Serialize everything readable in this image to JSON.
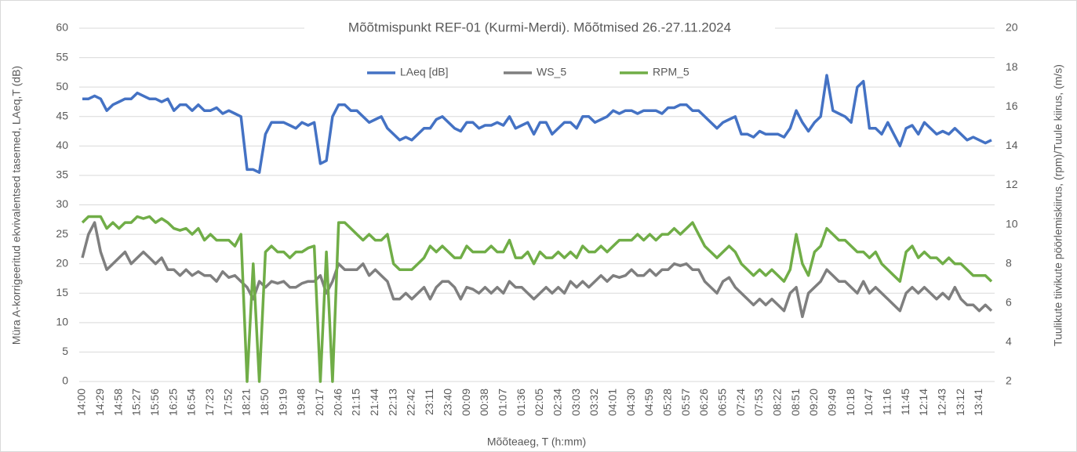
{
  "chart_data": {
    "type": "line",
    "title": "Mõõtmispunkt REF-01 (Kurmi-Merdi). Mõõtmised 26.-27.11.2024",
    "x_label": "Mõõteaeg, T (h:mm)",
    "y_label": "Müra A-korrigeeritud ekvivalentsed tasemed, LAeq,T (dB)",
    "y2_label": "Tuulikute tiivikute pöörlemiskiirus, (rpm)/Tuule kiirus, (m/s)",
    "categories": [
      "14:00",
      null,
      null,
      "14:29",
      null,
      null,
      "14:58",
      null,
      null,
      "15:27",
      null,
      null,
      "15:56",
      null,
      null,
      "16:25",
      null,
      null,
      "16:54",
      null,
      null,
      "17:23",
      null,
      null,
      "17:52",
      null,
      null,
      "18:21",
      null,
      null,
      "18:50",
      null,
      null,
      "19:19",
      null,
      null,
      "19:48",
      null,
      null,
      "20:17",
      null,
      null,
      "20:46",
      null,
      null,
      "21:15",
      null,
      null,
      "21:44",
      null,
      null,
      "22:13",
      null,
      null,
      "22:42",
      null,
      null,
      "23:11",
      null,
      null,
      "23:40",
      null,
      null,
      "00:09",
      null,
      null,
      "00:38",
      null,
      null,
      "01:07",
      null,
      null,
      "01:36",
      null,
      null,
      "02:05",
      null,
      null,
      "02:34",
      null,
      null,
      "03:03",
      null,
      null,
      "03:32",
      null,
      null,
      "04:01",
      null,
      null,
      "04:30",
      null,
      null,
      "04:59",
      null,
      null,
      "05:28",
      null,
      null,
      "05:57",
      null,
      null,
      "06:26",
      null,
      null,
      "06:55",
      null,
      null,
      "07:24",
      null,
      null,
      "07:53",
      null,
      null,
      "08:22",
      null,
      null,
      "08:51",
      null,
      null,
      "09:20",
      null,
      null,
      "09:49",
      null,
      null,
      "10:18",
      null,
      null,
      "10:47",
      null,
      null,
      "11:16",
      null,
      null,
      "11:45",
      null,
      null,
      "12:14",
      null,
      null,
      "12:43",
      null,
      null,
      "13:12",
      null,
      null,
      "13:41",
      null,
      null
    ],
    "series": [
      {
        "name": "LAeq [dB]",
        "color": "#4472c4",
        "values": [
          48,
          48,
          48.5,
          48,
          46,
          47,
          47.5,
          48,
          48,
          49,
          48.5,
          48,
          48,
          47.5,
          48,
          46,
          47,
          47,
          46,
          47,
          46,
          46,
          46.5,
          45.5,
          46,
          45.5,
          45,
          36,
          36,
          35.5,
          42,
          44,
          44,
          44,
          43.5,
          43,
          44,
          43.5,
          44,
          37,
          37.5,
          45,
          47,
          47,
          46,
          46,
          45,
          44,
          44.5,
          45,
          43,
          42,
          41,
          41.5,
          41,
          42,
          43,
          43,
          44.5,
          45,
          44,
          43,
          42.5,
          44,
          44,
          43,
          43.5,
          43.5,
          44,
          43.5,
          45,
          43,
          43.5,
          44,
          42,
          44,
          44,
          42,
          43,
          44,
          44,
          43,
          45,
          45,
          44,
          44.5,
          45,
          46,
          45.5,
          46,
          46,
          45.5,
          46,
          46,
          46,
          45.5,
          46.5,
          46.5,
          47,
          47,
          46,
          46,
          45,
          44,
          43,
          44,
          44.5,
          45,
          42,
          42,
          41.5,
          42.5,
          42,
          42,
          42,
          41.5,
          43,
          46,
          44,
          42.5,
          44,
          45,
          52,
          46,
          45.5,
          45,
          44,
          50,
          51,
          43,
          43,
          42,
          44,
          42,
          40,
          43,
          43.5,
          42,
          44,
          43,
          42,
          42.5,
          42,
          43,
          42,
          41,
          41.5,
          41,
          40.5,
          41
        ]
      },
      {
        "name": "WS_5",
        "color": "#7f7f7f",
        "axis": "y2",
        "values": [
          8.3,
          9.5,
          10.1,
          8.6,
          7.7,
          8.0,
          8.3,
          8.6,
          8.0,
          8.3,
          8.6,
          8.3,
          8.0,
          8.3,
          7.7,
          7.7,
          7.4,
          7.7,
          7.4,
          7.6,
          7.4,
          7.4,
          7.1,
          7.6,
          7.3,
          7.4,
          7.1,
          6.8,
          6.2,
          7.1,
          6.8,
          7.1,
          7.0,
          7.1,
          6.8,
          6.8,
          7.0,
          7.1,
          7.1,
          7.4,
          6.5,
          7.1,
          8.0,
          7.7,
          7.7,
          7.7,
          8.0,
          7.4,
          7.7,
          7.4,
          7.1,
          6.2,
          6.2,
          6.5,
          6.2,
          6.5,
          6.8,
          6.2,
          6.8,
          7.1,
          7.1,
          6.8,
          6.2,
          6.8,
          6.7,
          6.5,
          6.8,
          6.5,
          6.8,
          6.5,
          7.1,
          6.8,
          6.8,
          6.5,
          6.2,
          6.5,
          6.8,
          6.5,
          6.8,
          6.5,
          7.1,
          6.8,
          7.1,
          6.8,
          7.1,
          7.4,
          7.1,
          7.4,
          7.3,
          7.4,
          7.7,
          7.4,
          7.4,
          7.7,
          7.4,
          7.7,
          7.7,
          8.0,
          7.9,
          8.0,
          7.7,
          7.7,
          7.1,
          6.8,
          6.5,
          7.1,
          7.3,
          6.8,
          6.5,
          6.2,
          5.9,
          6.2,
          5.9,
          6.2,
          5.9,
          5.6,
          6.5,
          6.8,
          5.3,
          6.5,
          6.8,
          7.1,
          7.7,
          7.4,
          7.1,
          7.1,
          6.8,
          6.5,
          7.1,
          6.5,
          6.8,
          6.5,
          6.2,
          5.9,
          5.6,
          6.5,
          6.8,
          6.5,
          6.8,
          6.5,
          6.2,
          6.5,
          6.2,
          6.8,
          6.2,
          5.9,
          5.9,
          5.6,
          5.9,
          5.6
        ]
      },
      {
        "name": "RPM_5",
        "color": "#70ad47",
        "axis": "y2",
        "values": [
          10.1,
          10.4,
          10.4,
          10.4,
          9.8,
          10.1,
          9.8,
          10.1,
          10.1,
          10.4,
          10.3,
          10.4,
          10.1,
          10.3,
          10.1,
          9.8,
          9.7,
          9.8,
          9.5,
          9.8,
          9.2,
          9.5,
          9.2,
          9.2,
          9.2,
          8.9,
          9.5,
          2,
          8.0,
          2,
          8.6,
          8.9,
          8.6,
          8.6,
          8.3,
          8.6,
          8.6,
          8.8,
          8.9,
          2,
          8.6,
          2,
          10.1,
          10.1,
          9.8,
          9.5,
          9.2,
          9.5,
          9.2,
          9.2,
          9.5,
          8.0,
          7.7,
          7.7,
          7.7,
          8.0,
          8.3,
          8.9,
          8.6,
          8.9,
          8.6,
          8.3,
          8.3,
          8.9,
          8.6,
          8.6,
          8.6,
          8.9,
          8.6,
          8.6,
          9.2,
          8.3,
          8.3,
          8.6,
          8.0,
          8.6,
          8.3,
          8.3,
          8.6,
          8.3,
          8.6,
          8.3,
          8.9,
          8.6,
          8.6,
          8.9,
          8.6,
          8.9,
          9.2,
          9.2,
          9.2,
          9.5,
          9.2,
          9.5,
          9.2,
          9.5,
          9.5,
          9.8,
          9.5,
          9.8,
          10.1,
          9.5,
          8.9,
          8.6,
          8.3,
          8.6,
          8.9,
          8.6,
          8.0,
          7.7,
          7.4,
          7.7,
          7.4,
          7.7,
          7.4,
          7.1,
          7.7,
          9.5,
          8.0,
          7.4,
          8.6,
          8.9,
          9.8,
          9.5,
          9.2,
          9.2,
          8.9,
          8.6,
          8.6,
          8.3,
          8.6,
          8.0,
          7.7,
          7.4,
          7.1,
          8.6,
          8.9,
          8.3,
          8.6,
          8.3,
          8.3,
          8.0,
          8.3,
          8.0,
          8.0,
          7.7,
          7.4,
          7.4,
          7.4,
          7.1
        ]
      }
    ],
    "ylim": [
      0,
      60
    ],
    "yticks": [
      0,
      5,
      10,
      15,
      20,
      25,
      30,
      35,
      40,
      45,
      50,
      55,
      60
    ],
    "y2lim": [
      2,
      20
    ],
    "y2ticks": [
      2,
      4,
      6,
      8,
      10,
      12,
      14,
      16,
      18,
      20
    ],
    "grid": true,
    "legend": "top"
  }
}
